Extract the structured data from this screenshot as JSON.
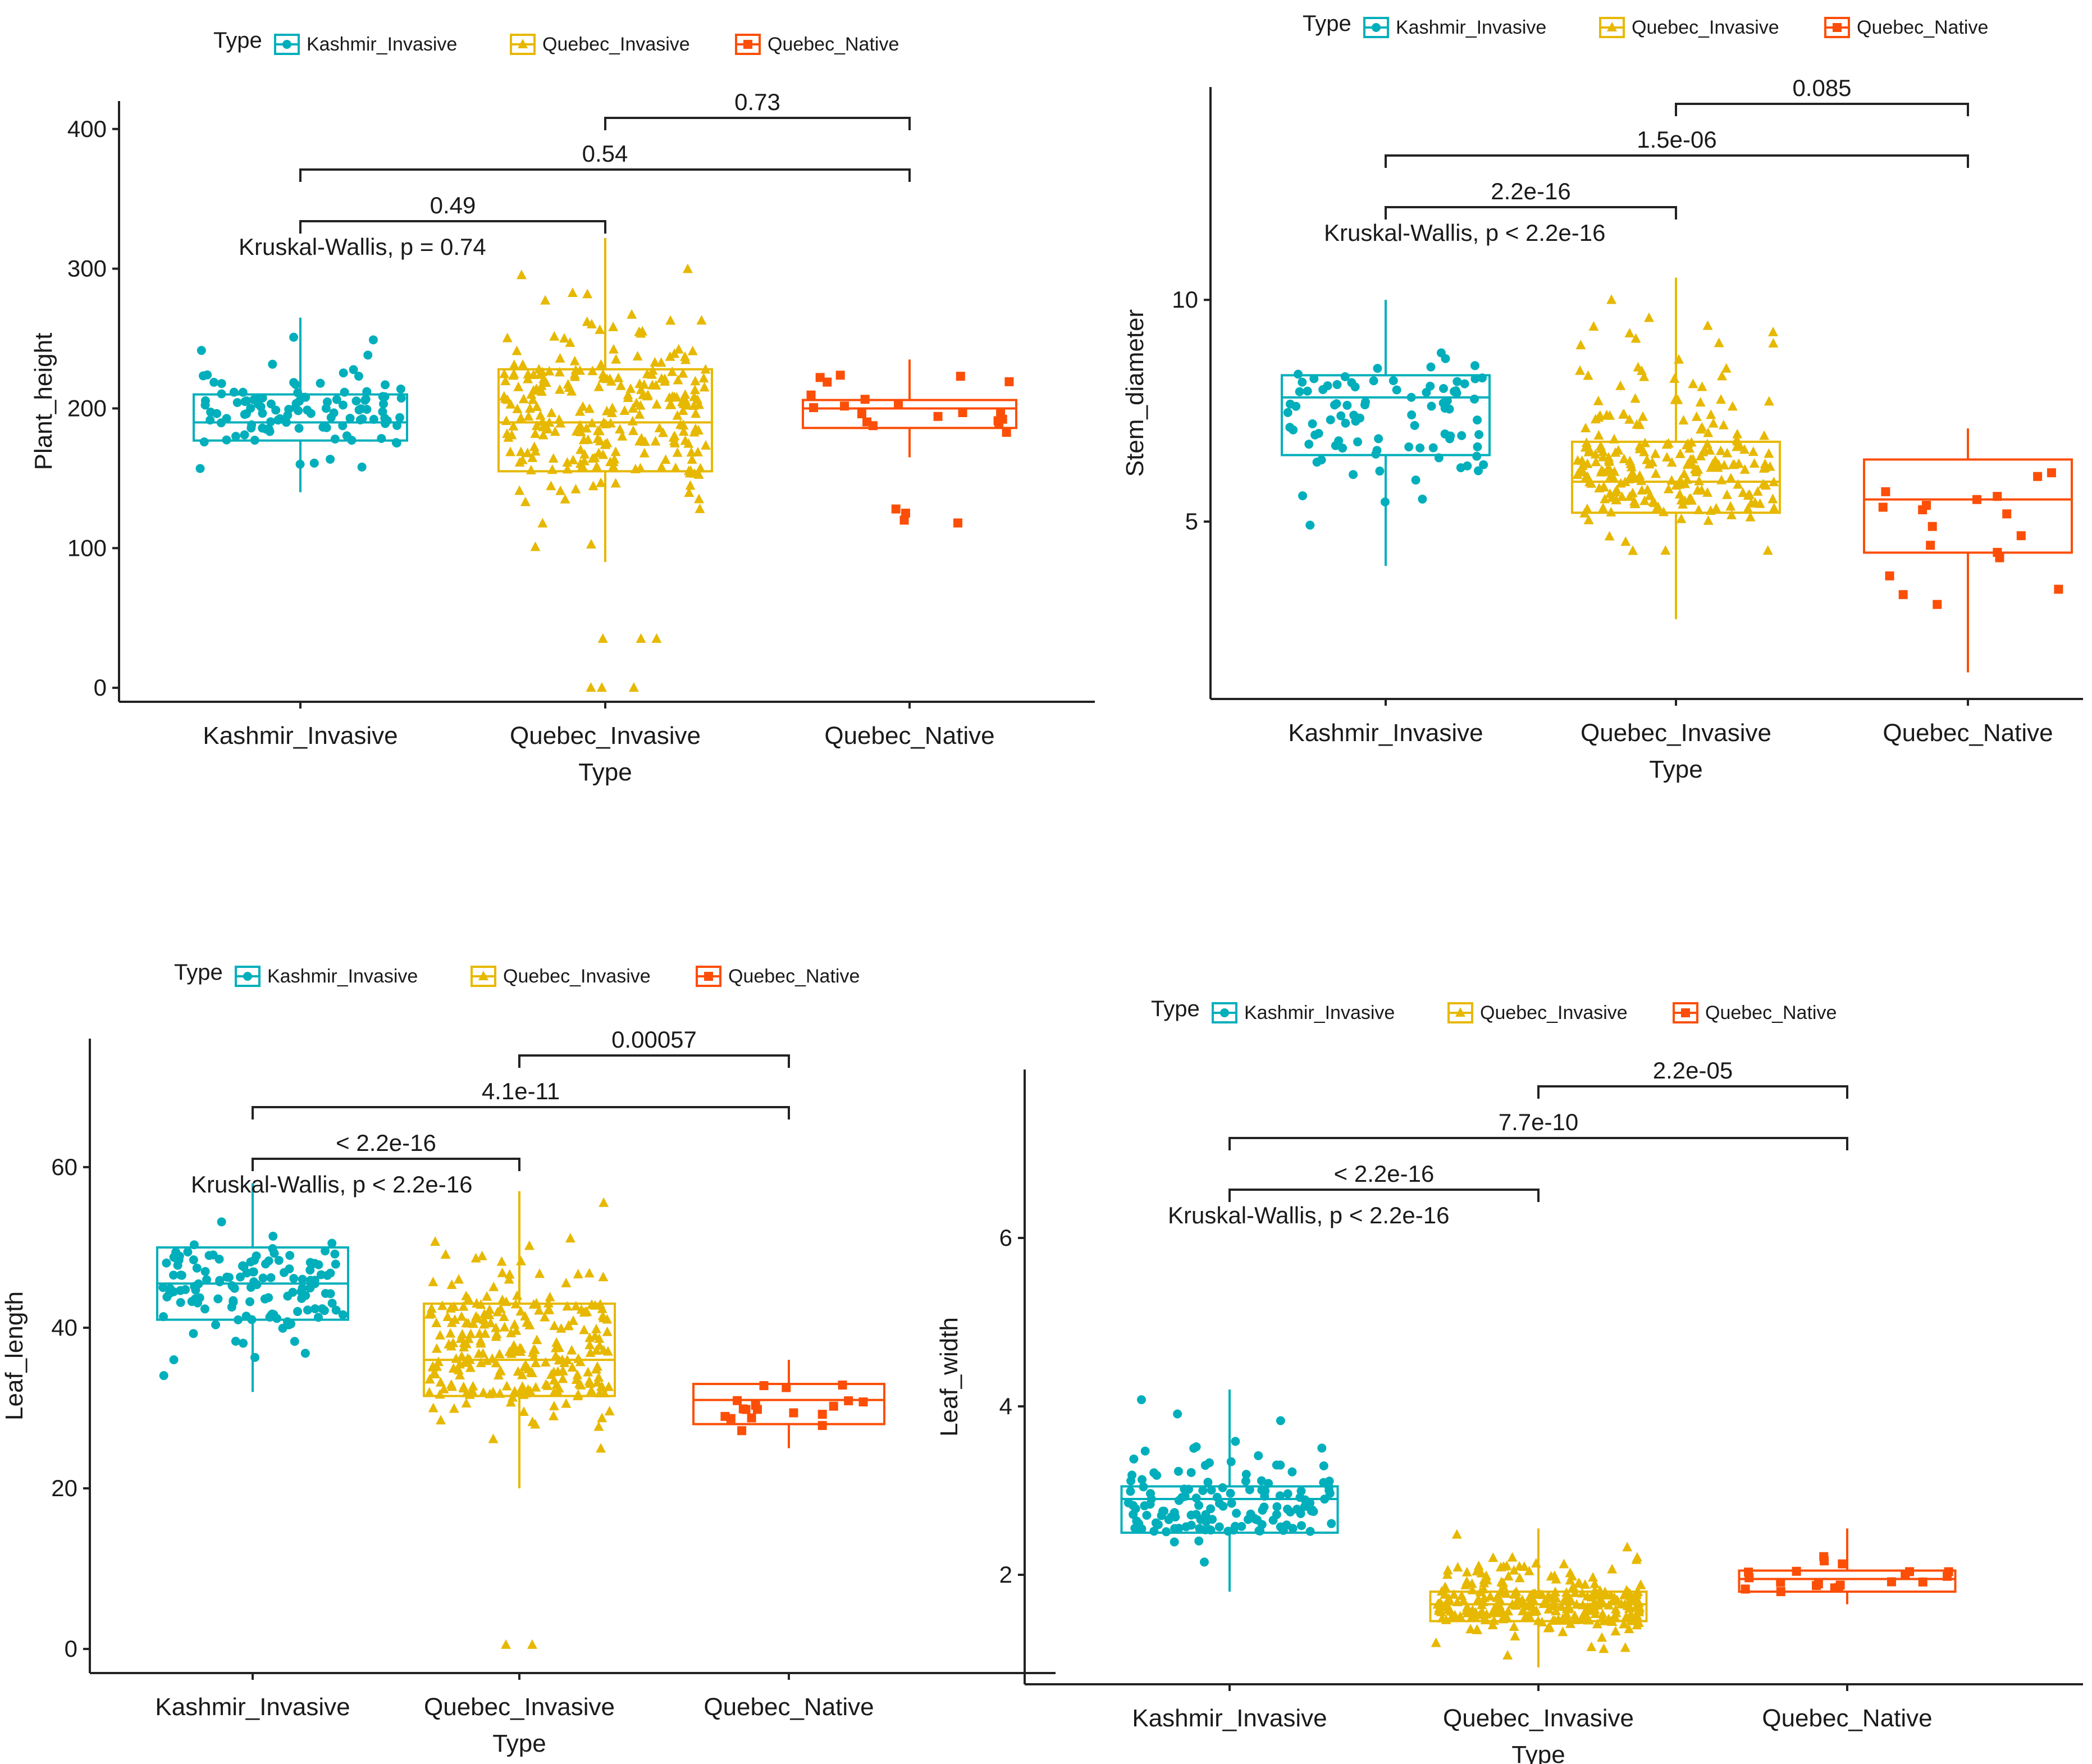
{
  "legend_title": "Type",
  "groups": [
    "Kashmir_Invasive",
    "Quebec_Invasive",
    "Quebec_Native"
  ],
  "colors": {
    "Kashmir_Invasive": "#00AFBB",
    "Quebec_Invasive": "#E7B800",
    "Quebec_Native": "#FC4E07"
  },
  "chart_data": [
    {
      "type": "box",
      "ylabel": "Plant_height",
      "xlabel": "Type",
      "categories": [
        "Kashmir_Invasive",
        "Quebec_Invasive",
        "Quebec_Native"
      ],
      "yticks": [
        0,
        100,
        200,
        300,
        400
      ],
      "ylim": [
        -10,
        420
      ],
      "boxes": [
        {
          "q1": 177,
          "median": 190,
          "q3": 210,
          "min": 140,
          "max": 265
        },
        {
          "q1": 155,
          "median": 190,
          "q3": 228,
          "min": 90,
          "max": 322
        },
        {
          "q1": 186,
          "median": 200,
          "q3": 206,
          "min": 165,
          "max": 235
        }
      ],
      "outliers": [
        [],
        [
          0,
          0,
          0,
          35,
          35,
          35
        ],
        [
          120,
          118,
          125,
          128
        ]
      ],
      "kruskal": "Kruskal-Wallis, p = 0.74",
      "comparisons": [
        {
          "from": 1,
          "to": 2,
          "label": "0.73"
        },
        {
          "from": 0,
          "to": 2,
          "label": "0.54"
        },
        {
          "from": 0,
          "to": 1,
          "label": "0.49"
        }
      ]
    },
    {
      "type": "box",
      "ylabel": "Stem_diameter",
      "xlabel": "Type",
      "categories": [
        "Kashmir_Invasive",
        "Quebec_Invasive",
        "Quebec_Native"
      ],
      "yticks": [
        5,
        10
      ],
      "ylim": [
        1,
        14.8
      ],
      "boxes": [
        {
          "q1": 6.5,
          "median": 7.8,
          "q3": 8.3,
          "min": 4.0,
          "max": 10.0
        },
        {
          "q1": 5.2,
          "median": 5.9,
          "q3": 6.8,
          "min": 2.8,
          "max": 10.5
        },
        {
          "q1": 4.3,
          "median": 5.5,
          "q3": 6.4,
          "min": 1.6,
          "max": 7.1
        }
      ],
      "outliers": [
        [],
        [],
        []
      ],
      "kruskal": "Kruskal-Wallis, p < 2.2e-16",
      "comparisons": [
        {
          "from": 1,
          "to": 2,
          "label": "0.085"
        },
        {
          "from": 0,
          "to": 2,
          "label": "1.5e-06"
        },
        {
          "from": 0,
          "to": 1,
          "label": "2.2e-16"
        }
      ]
    },
    {
      "type": "box",
      "ylabel": "Leaf_length",
      "xlabel": "Type",
      "categories": [
        "Kashmir_Invasive",
        "Quebec_Invasive",
        "Quebec_Native"
      ],
      "yticks": [
        0,
        20,
        40,
        60
      ],
      "ylim": [
        -3,
        76
      ],
      "boxes": [
        {
          "q1": 41,
          "median": 45.5,
          "q3": 50,
          "min": 32,
          "max": 58
        },
        {
          "q1": 31.5,
          "median": 36,
          "q3": 43,
          "min": 20,
          "max": 57
        },
        {
          "q1": 28,
          "median": 31,
          "q3": 33,
          "min": 25,
          "max": 36
        }
      ],
      "outliers": [
        [],
        [
          0.5,
          0.5
        ],
        []
      ],
      "kruskal": "Kruskal-Wallis, p < 2.2e-16",
      "comparisons": [
        {
          "from": 1,
          "to": 2,
          "label": "0.00057"
        },
        {
          "from": 0,
          "to": 2,
          "label": "4.1e-11"
        },
        {
          "from": 0,
          "to": 1,
          "label": "< 2.2e-16"
        }
      ]
    },
    {
      "type": "box",
      "ylabel": "Leaf_width",
      "xlabel": "Type",
      "categories": [
        "Kashmir_Invasive",
        "Quebec_Invasive",
        "Quebec_Native"
      ],
      "yticks": [
        2,
        4,
        6
      ],
      "ylim": [
        0.7,
        8.0
      ],
      "boxes": [
        {
          "q1": 2.5,
          "median": 2.9,
          "q3": 3.05,
          "min": 1.8,
          "max": 4.2
        },
        {
          "q1": 1.45,
          "median": 1.65,
          "q3": 1.8,
          "min": 0.9,
          "max": 2.55
        },
        {
          "q1": 1.8,
          "median": 1.95,
          "q3": 2.05,
          "min": 1.65,
          "max": 2.55
        }
      ],
      "outliers": [
        [],
        [],
        []
      ],
      "kruskal": "Kruskal-Wallis, p < 2.2e-16",
      "comparisons": [
        {
          "from": 1,
          "to": 2,
          "label": "2.2e-05"
        },
        {
          "from": 0,
          "to": 2,
          "label": "7.7e-10"
        },
        {
          "from": 0,
          "to": 1,
          "label": "< 2.2e-16"
        }
      ]
    }
  ]
}
